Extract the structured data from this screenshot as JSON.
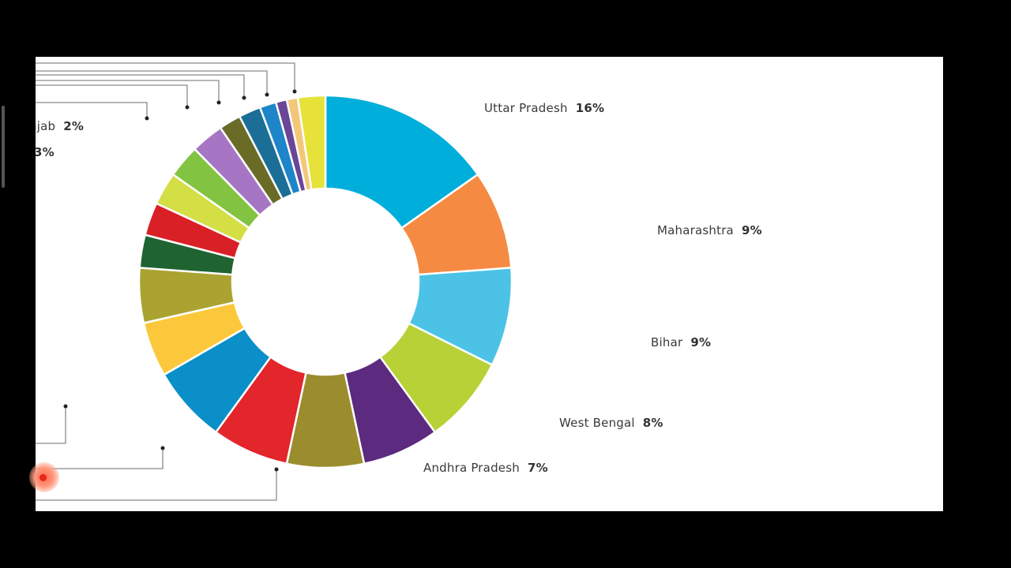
{
  "chart_data": {
    "type": "pie",
    "variant": "donut",
    "title": "",
    "slices": [
      {
        "label": "Uttar Pradesh",
        "value": 16,
        "display": "16%",
        "color": "#00aedb"
      },
      {
        "label": "Maharashtra",
        "value": 9,
        "display": "9%",
        "color": "#f58b42"
      },
      {
        "label": "Bihar",
        "value": 9,
        "display": "9%",
        "color": "#4cc3e6"
      },
      {
        "label": "West Bengal",
        "value": 8,
        "display": "8%",
        "color": "#b7d136"
      },
      {
        "label": "Andhra Pradesh",
        "value": 7,
        "display": "7%",
        "color": "#5c2a7f"
      },
      {
        "label": "",
        "value": 7,
        "color": "#9b8d2e"
      },
      {
        "label": "",
        "value": 7,
        "color": "#e3252c"
      },
      {
        "label": "",
        "value": 7,
        "color": "#0a8fc8"
      },
      {
        "label": "",
        "value": 5,
        "color": "#fcc83b"
      },
      {
        "label": "",
        "value": 5,
        "color": "#aaa332"
      },
      {
        "label": "",
        "value": 3,
        "color": "#1f6331"
      },
      {
        "label": "",
        "value": 3,
        "color": "#d92026"
      },
      {
        "label": "",
        "value": 3,
        "color": "#d4de45"
      },
      {
        "label": "",
        "value": 3,
        "color": "#82c441"
      },
      {
        "label": "",
        "value": 3,
        "color": "#a676c5"
      },
      {
        "label": "",
        "value": 2,
        "color": "#6a6b27"
      },
      {
        "label": "",
        "value": 2,
        "color": "#1b6f96"
      },
      {
        "label": "",
        "value": 1.5,
        "color": "#1d85c8"
      },
      {
        "label": "",
        "value": 1,
        "color": "#6b4596"
      },
      {
        "label": "",
        "value": 1,
        "color": "#f3c77a"
      },
      {
        "label": "",
        "value": 2.5,
        "color": "#e6e23a"
      }
    ],
    "partial_labels": [
      {
        "name": "njab",
        "pct": "2%"
      },
      {
        "name": "",
        "pct": "3%"
      }
    ]
  }
}
